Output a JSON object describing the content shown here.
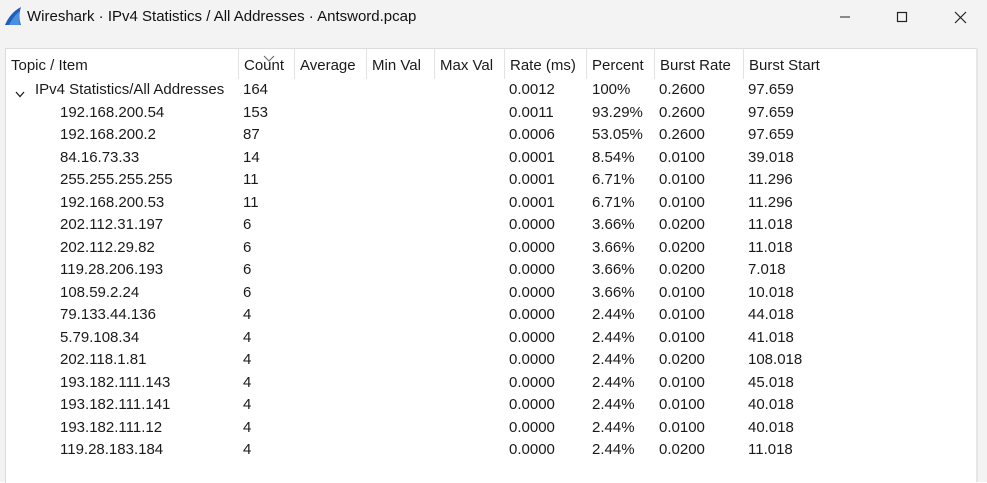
{
  "window": {
    "title": "Wireshark · IPv4 Statistics / All Addresses · Antsword.pcap",
    "icon": "wireshark-fin-icon"
  },
  "colors": {
    "fin": "#1f5fb8",
    "text": "#1a1a1a",
    "chrome": "#f3f3f3"
  },
  "columns": [
    "Topic / Item",
    "Count",
    "Average",
    "Min Val",
    "Max Val",
    "Rate (ms)",
    "Percent",
    "Burst Rate",
    "Burst Start"
  ],
  "sort": {
    "column": "Count",
    "direction": "descending",
    "icon": "sort-descending-icon"
  },
  "parent": {
    "label": "IPv4 Statistics/All Addresses",
    "expanded": true,
    "count": "164",
    "rate": "0.0012",
    "percent": "100%",
    "burst_rate": "0.2600",
    "burst_start": "97.659"
  },
  "rows": [
    {
      "address": "192.168.200.54",
      "count": "153",
      "rate": "0.0011",
      "percent": "93.29%",
      "burst_rate": "0.2600",
      "burst_start": "97.659"
    },
    {
      "address": "192.168.200.2",
      "count": "87",
      "rate": "0.0006",
      "percent": "53.05%",
      "burst_rate": "0.2600",
      "burst_start": "97.659"
    },
    {
      "address": "84.16.73.33",
      "count": "14",
      "rate": "0.0001",
      "percent": "8.54%",
      "burst_rate": "0.0100",
      "burst_start": "39.018"
    },
    {
      "address": "255.255.255.255",
      "count": "11",
      "rate": "0.0001",
      "percent": "6.71%",
      "burst_rate": "0.0100",
      "burst_start": "11.296"
    },
    {
      "address": "192.168.200.53",
      "count": "11",
      "rate": "0.0001",
      "percent": "6.71%",
      "burst_rate": "0.0100",
      "burst_start": "11.296"
    },
    {
      "address": "202.112.31.197",
      "count": "6",
      "rate": "0.0000",
      "percent": "3.66%",
      "burst_rate": "0.0200",
      "burst_start": "11.018"
    },
    {
      "address": "202.112.29.82",
      "count": "6",
      "rate": "0.0000",
      "percent": "3.66%",
      "burst_rate": "0.0200",
      "burst_start": "11.018"
    },
    {
      "address": "119.28.206.193",
      "count": "6",
      "rate": "0.0000",
      "percent": "3.66%",
      "burst_rate": "0.0200",
      "burst_start": "7.018"
    },
    {
      "address": "108.59.2.24",
      "count": "6",
      "rate": "0.0000",
      "percent": "3.66%",
      "burst_rate": "0.0100",
      "burst_start": "10.018"
    },
    {
      "address": "79.133.44.136",
      "count": "4",
      "rate": "0.0000",
      "percent": "2.44%",
      "burst_rate": "0.0100",
      "burst_start": "44.018"
    },
    {
      "address": "5.79.108.34",
      "count": "4",
      "rate": "0.0000",
      "percent": "2.44%",
      "burst_rate": "0.0100",
      "burst_start": "41.018"
    },
    {
      "address": "202.118.1.81",
      "count": "4",
      "rate": "0.0000",
      "percent": "2.44%",
      "burst_rate": "0.0200",
      "burst_start": "108.018"
    },
    {
      "address": "193.182.111.143",
      "count": "4",
      "rate": "0.0000",
      "percent": "2.44%",
      "burst_rate": "0.0100",
      "burst_start": "45.018"
    },
    {
      "address": "193.182.111.141",
      "count": "4",
      "rate": "0.0000",
      "percent": "2.44%",
      "burst_rate": "0.0100",
      "burst_start": "40.018"
    },
    {
      "address": "193.182.111.12",
      "count": "4",
      "rate": "0.0000",
      "percent": "2.44%",
      "burst_rate": "0.0100",
      "burst_start": "40.018"
    },
    {
      "address": "119.28.183.184",
      "count": "4",
      "rate": "0.0000",
      "percent": "2.44%",
      "burst_rate": "0.0200",
      "burst_start": "11.018"
    }
  ]
}
